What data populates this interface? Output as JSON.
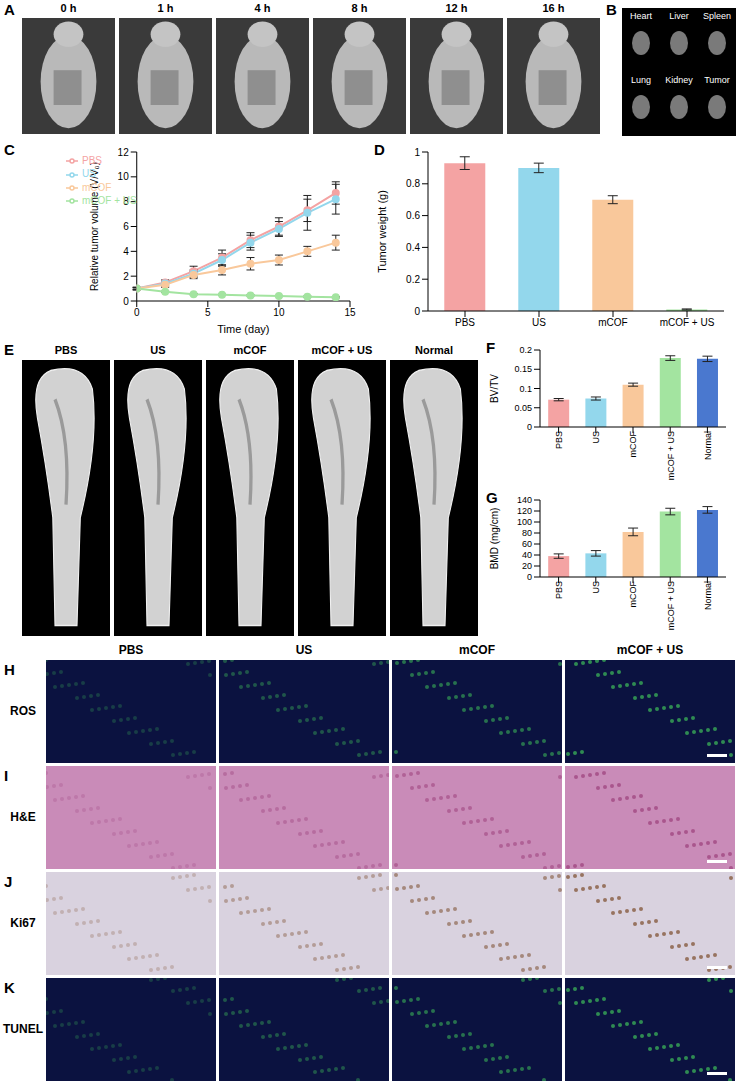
{
  "chart_data": [
    {
      "panel": "C",
      "type": "line",
      "x_label": "Time (day)",
      "y_label": "Relative tumor volume (V/V₀)",
      "x": [
        0,
        2,
        4,
        6,
        8,
        10,
        12,
        14
      ],
      "xlim": [
        0,
        15
      ],
      "xticks": [
        0,
        5,
        10,
        15
      ],
      "ylim": [
        0,
        12
      ],
      "yticks": [
        0,
        2,
        4,
        6,
        8,
        10,
        12
      ],
      "grid": false,
      "legend": "upper left",
      "marker": "circle",
      "series": [
        {
          "name": "PBS",
          "color": "#f4a3a3",
          "values": [
            1,
            1.5,
            2.4,
            3.5,
            4.9,
            6.0,
            7.3,
            8.7
          ],
          "errors": [
            0.1,
            0.2,
            0.4,
            0.6,
            0.6,
            0.7,
            0.9,
            0.9
          ]
        },
        {
          "name": "US",
          "color": "#93d7ec",
          "values": [
            1,
            1.4,
            2.2,
            3.3,
            4.7,
            5.8,
            7.1,
            8.2
          ],
          "errors": [
            0.1,
            0.2,
            0.3,
            0.5,
            0.6,
            0.6,
            1.4,
            1.2
          ]
        },
        {
          "name": "mCOF",
          "color": "#f9c89b",
          "values": [
            1,
            1.3,
            2.1,
            2.5,
            3.0,
            3.3,
            4.0,
            4.7
          ],
          "errors": [
            0.1,
            0.2,
            0.3,
            0.4,
            0.5,
            0.4,
            0.4,
            0.6
          ]
        },
        {
          "name": "mCOF + US",
          "color": "#a3e4a0",
          "values": [
            1,
            0.75,
            0.55,
            0.5,
            0.45,
            0.4,
            0.35,
            0.3
          ],
          "errors": [
            0.05,
            0.05,
            0.05,
            0.05,
            0.05,
            0.05,
            0.05,
            0.05
          ]
        }
      ]
    },
    {
      "panel": "D",
      "type": "bar",
      "y_label": "Tumor weight (g)",
      "categories": [
        "PBS",
        "US",
        "mCOF",
        "mCOF + US"
      ],
      "values": [
        0.93,
        0.9,
        0.7,
        0.01
      ],
      "errors": [
        0.04,
        0.03,
        0.025,
        0.003
      ],
      "colors": [
        "#f4a3a3",
        "#93d7ec",
        "#f9c89b",
        "#a3e4a0"
      ],
      "ylim": [
        0,
        1
      ],
      "yticks": [
        0,
        0.2,
        0.4,
        0.6,
        0.8,
        1
      ],
      "grid": false
    },
    {
      "panel": "F",
      "type": "bar",
      "y_label": "BV/TV",
      "categories": [
        "PBS",
        "US",
        "mCOF",
        "mCOF + US",
        "Normal"
      ],
      "values": [
        0.071,
        0.074,
        0.11,
        0.179,
        0.177
      ],
      "errors": [
        0.003,
        0.004,
        0.004,
        0.006,
        0.007
      ],
      "colors": [
        "#f4a3a3",
        "#93d7ec",
        "#f9c89b",
        "#a3e4a0",
        "#4a78cf"
      ],
      "ylim": [
        0,
        0.2
      ],
      "yticks": [
        0,
        0.05,
        0.1,
        0.15,
        0.2
      ],
      "grid": false
    },
    {
      "panel": "G",
      "type": "bar",
      "y_label": "BMD (mg/cm)",
      "categories": [
        "PBS",
        "US",
        "mCOF",
        "mCOF + US",
        "Normal"
      ],
      "values": [
        38,
        43,
        82,
        119,
        122
      ],
      "errors": [
        4,
        5,
        7,
        6,
        6
      ],
      "colors": [
        "#f4a3a3",
        "#93d7ec",
        "#f9c89b",
        "#a3e4a0",
        "#4a78cf"
      ],
      "ylim": [
        0,
        140
      ],
      "yticks": [
        0,
        20,
        40,
        60,
        80,
        100,
        120,
        140
      ],
      "grid": false
    }
  ],
  "panels": {
    "A": {
      "panel": "A",
      "labels": [
        "0 h",
        "1 h",
        "4 h",
        "8 h",
        "12 h",
        "16 h"
      ]
    },
    "B": {
      "panel": "B",
      "labels": [
        "Heart",
        "Liver",
        "Spleen",
        "Lung",
        "Kidney",
        "Tumor"
      ]
    },
    "E": {
      "panel": "E",
      "labels": [
        "PBS",
        "US",
        "mCOF",
        "mCOF + US",
        "Normal"
      ]
    },
    "histology": {
      "columns": [
        "PBS",
        "US",
        "mCOF",
        "mCOF + US"
      ],
      "rows": [
        {
          "panel": "H",
          "label": "ROS"
        },
        {
          "panel": "I",
          "label": "H&E"
        },
        {
          "panel": "J",
          "label": "Ki67"
        },
        {
          "panel": "K",
          "label": "TUNEL"
        }
      ]
    }
  }
}
